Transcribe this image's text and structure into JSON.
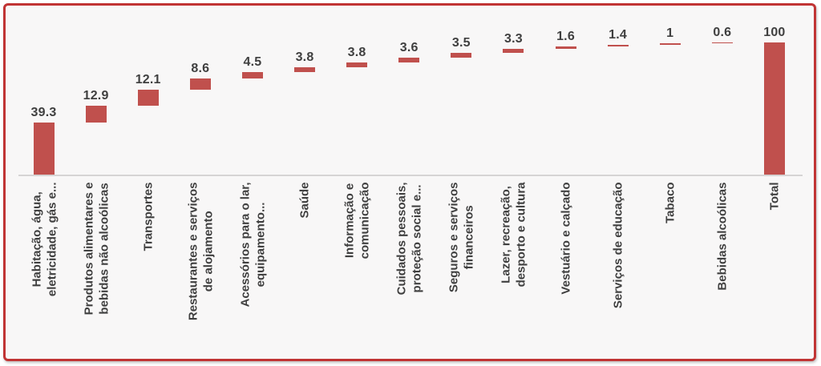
{
  "chart_data": {
    "type": "bar",
    "subtype": "waterfall",
    "title": "",
    "xlabel": "",
    "ylabel": "",
    "ylim": [
      0,
      100
    ],
    "grid": false,
    "legend": null,
    "categories": [
      "Habitação, água,\neletricidade, gás e...",
      "Produtos alimentares e\nbebidas não alcoólicas",
      "Transportes",
      "Restaurantes e serviços\nde alojamento",
      "Acessórios para o lar,\nequipamento...",
      "Saúde",
      "Informação e\ncomunicação",
      "Cuidados pessoais,\nproteção social e...",
      "Seguros e serviços\nfinanceiros",
      "Lazer, recreação,\ndesporto e cultura",
      "Vestuário e calçado",
      "Serviços de educação",
      "Tabaco",
      "Bebidas alcoólicas",
      "Total"
    ],
    "values": [
      39.3,
      12.9,
      12.1,
      8.6,
      4.5,
      3.8,
      3.8,
      3.6,
      3.5,
      3.3,
      1.6,
      1.4,
      1,
      0.6,
      100
    ],
    "value_labels": [
      "39.3",
      "12.9",
      "12.1",
      "8.6",
      "4.5",
      "3.8",
      "3.8",
      "3.6",
      "3.5",
      "3.3",
      "1.6",
      "1.4",
      "1",
      "0.6",
      "100"
    ],
    "totals": [
      false,
      false,
      false,
      false,
      false,
      false,
      false,
      false,
      false,
      false,
      false,
      false,
      false,
      false,
      true
    ],
    "colors": {
      "bar": "#C0504D",
      "text": "#3F3F3F",
      "axis_line": "#D6D4D4",
      "frame_border": "#C13434",
      "plot_background": "#F8F7F7"
    }
  }
}
